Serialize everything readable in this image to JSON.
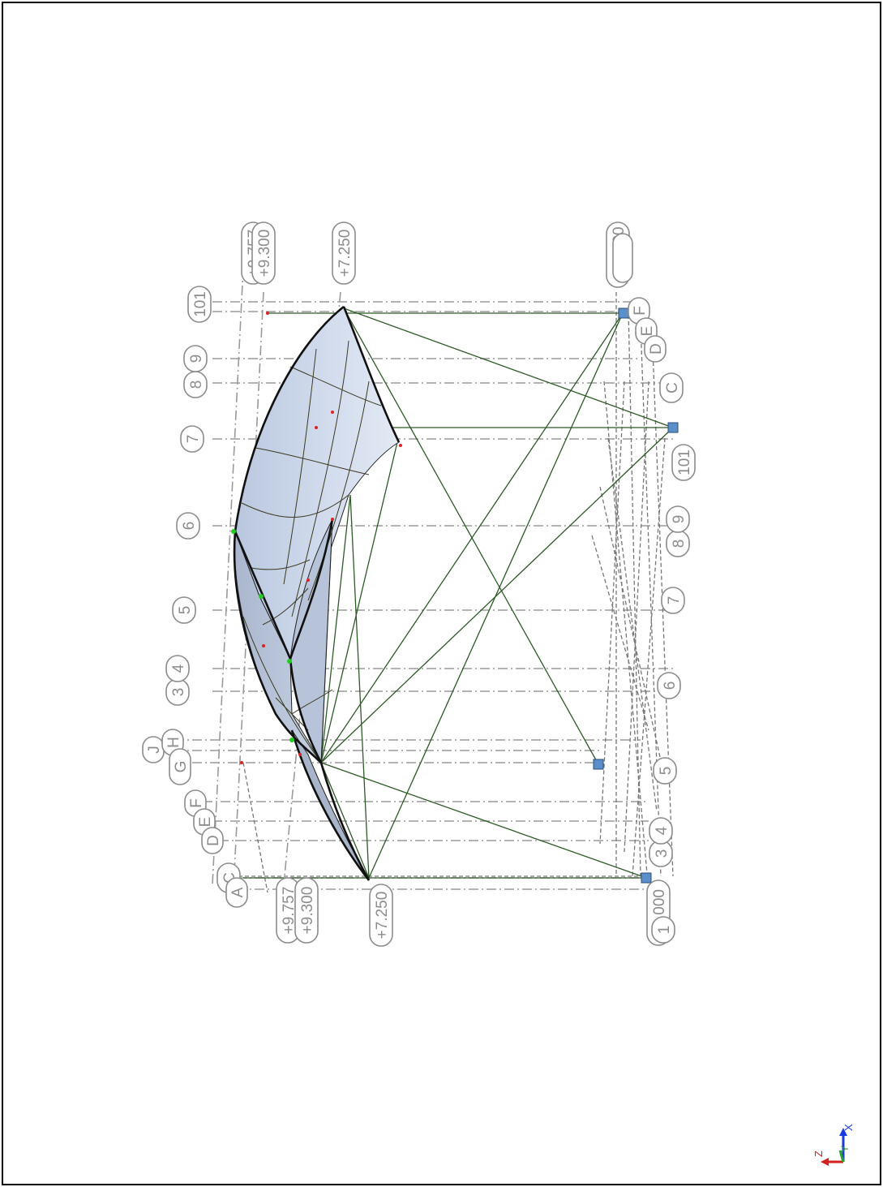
{
  "view": {
    "labels": {
      "elev_top_a": "+9.757",
      "elev_top_b": "+9.300",
      "elev_top_c": "+7.250",
      "elev_top_d": "+10.000",
      "elev_bot_a": "+9.757",
      "elev_bot_b": "+9.300",
      "elev_bot_c": "+7.250",
      "elev_bot_d": "±0.000",
      "g101": "101",
      "g8": "8",
      "g9": "9",
      "g7": "7",
      "g6": "6",
      "g5": "5",
      "g3": "3",
      "g4": "4",
      "gJ": "J",
      "gH": "H",
      "gG": "G",
      "gF": "F",
      "gE": "E",
      "gD": "D",
      "gC": "C",
      "gA": "A",
      "r_F": "F",
      "r_E": "E",
      "r_D": "D",
      "r_C": "C",
      "r_101": "101",
      "r_8": "8",
      "r_9": "9",
      "r_7": "7",
      "r_6": "6",
      "r_5": "5",
      "r_3": "3",
      "r_4": "4",
      "r_1": "1"
    },
    "axes": {
      "x": "X",
      "y": "Y",
      "z": "Z"
    },
    "colors": {
      "surface": "#cdd8ea",
      "support": "#5b8fc9",
      "cables": "#2d5a27",
      "grid": "#9a9a9a"
    }
  }
}
